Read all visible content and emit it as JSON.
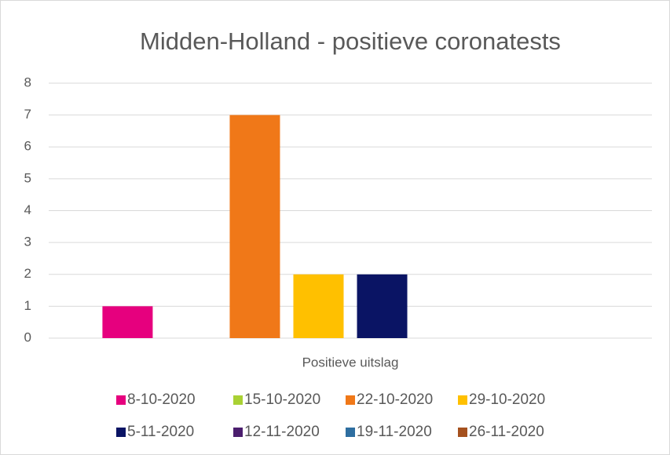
{
  "chart_data": {
    "type": "bar",
    "title": "Midden-Holland - positieve coronatests",
    "categories": [
      "Positieve uitslag"
    ],
    "series": [
      {
        "name": "8-10-2020",
        "color": "#e6007e",
        "values": [
          1
        ]
      },
      {
        "name": "15-10-2020",
        "color": "#a9d134",
        "values": [
          0
        ]
      },
      {
        "name": "22-10-2020",
        "color": "#f07818",
        "values": [
          7
        ]
      },
      {
        "name": "29-10-2020",
        "color": "#ffc000",
        "values": [
          2
        ]
      },
      {
        "name": "5-11-2020",
        "color": "#0a1464",
        "values": [
          2
        ]
      },
      {
        "name": "12-11-2020",
        "color": "#4b1e6e",
        "values": [
          0
        ]
      },
      {
        "name": "19-11-2020",
        "color": "#2e6ea0",
        "values": [
          0
        ]
      },
      {
        "name": "26-11-2020",
        "color": "#a5511e",
        "values": [
          0
        ]
      }
    ],
    "ylim": [
      0,
      8
    ],
    "yticks": [
      0,
      1,
      2,
      3,
      4,
      5,
      6,
      7,
      8
    ],
    "grid": true,
    "legend": "bottom"
  }
}
